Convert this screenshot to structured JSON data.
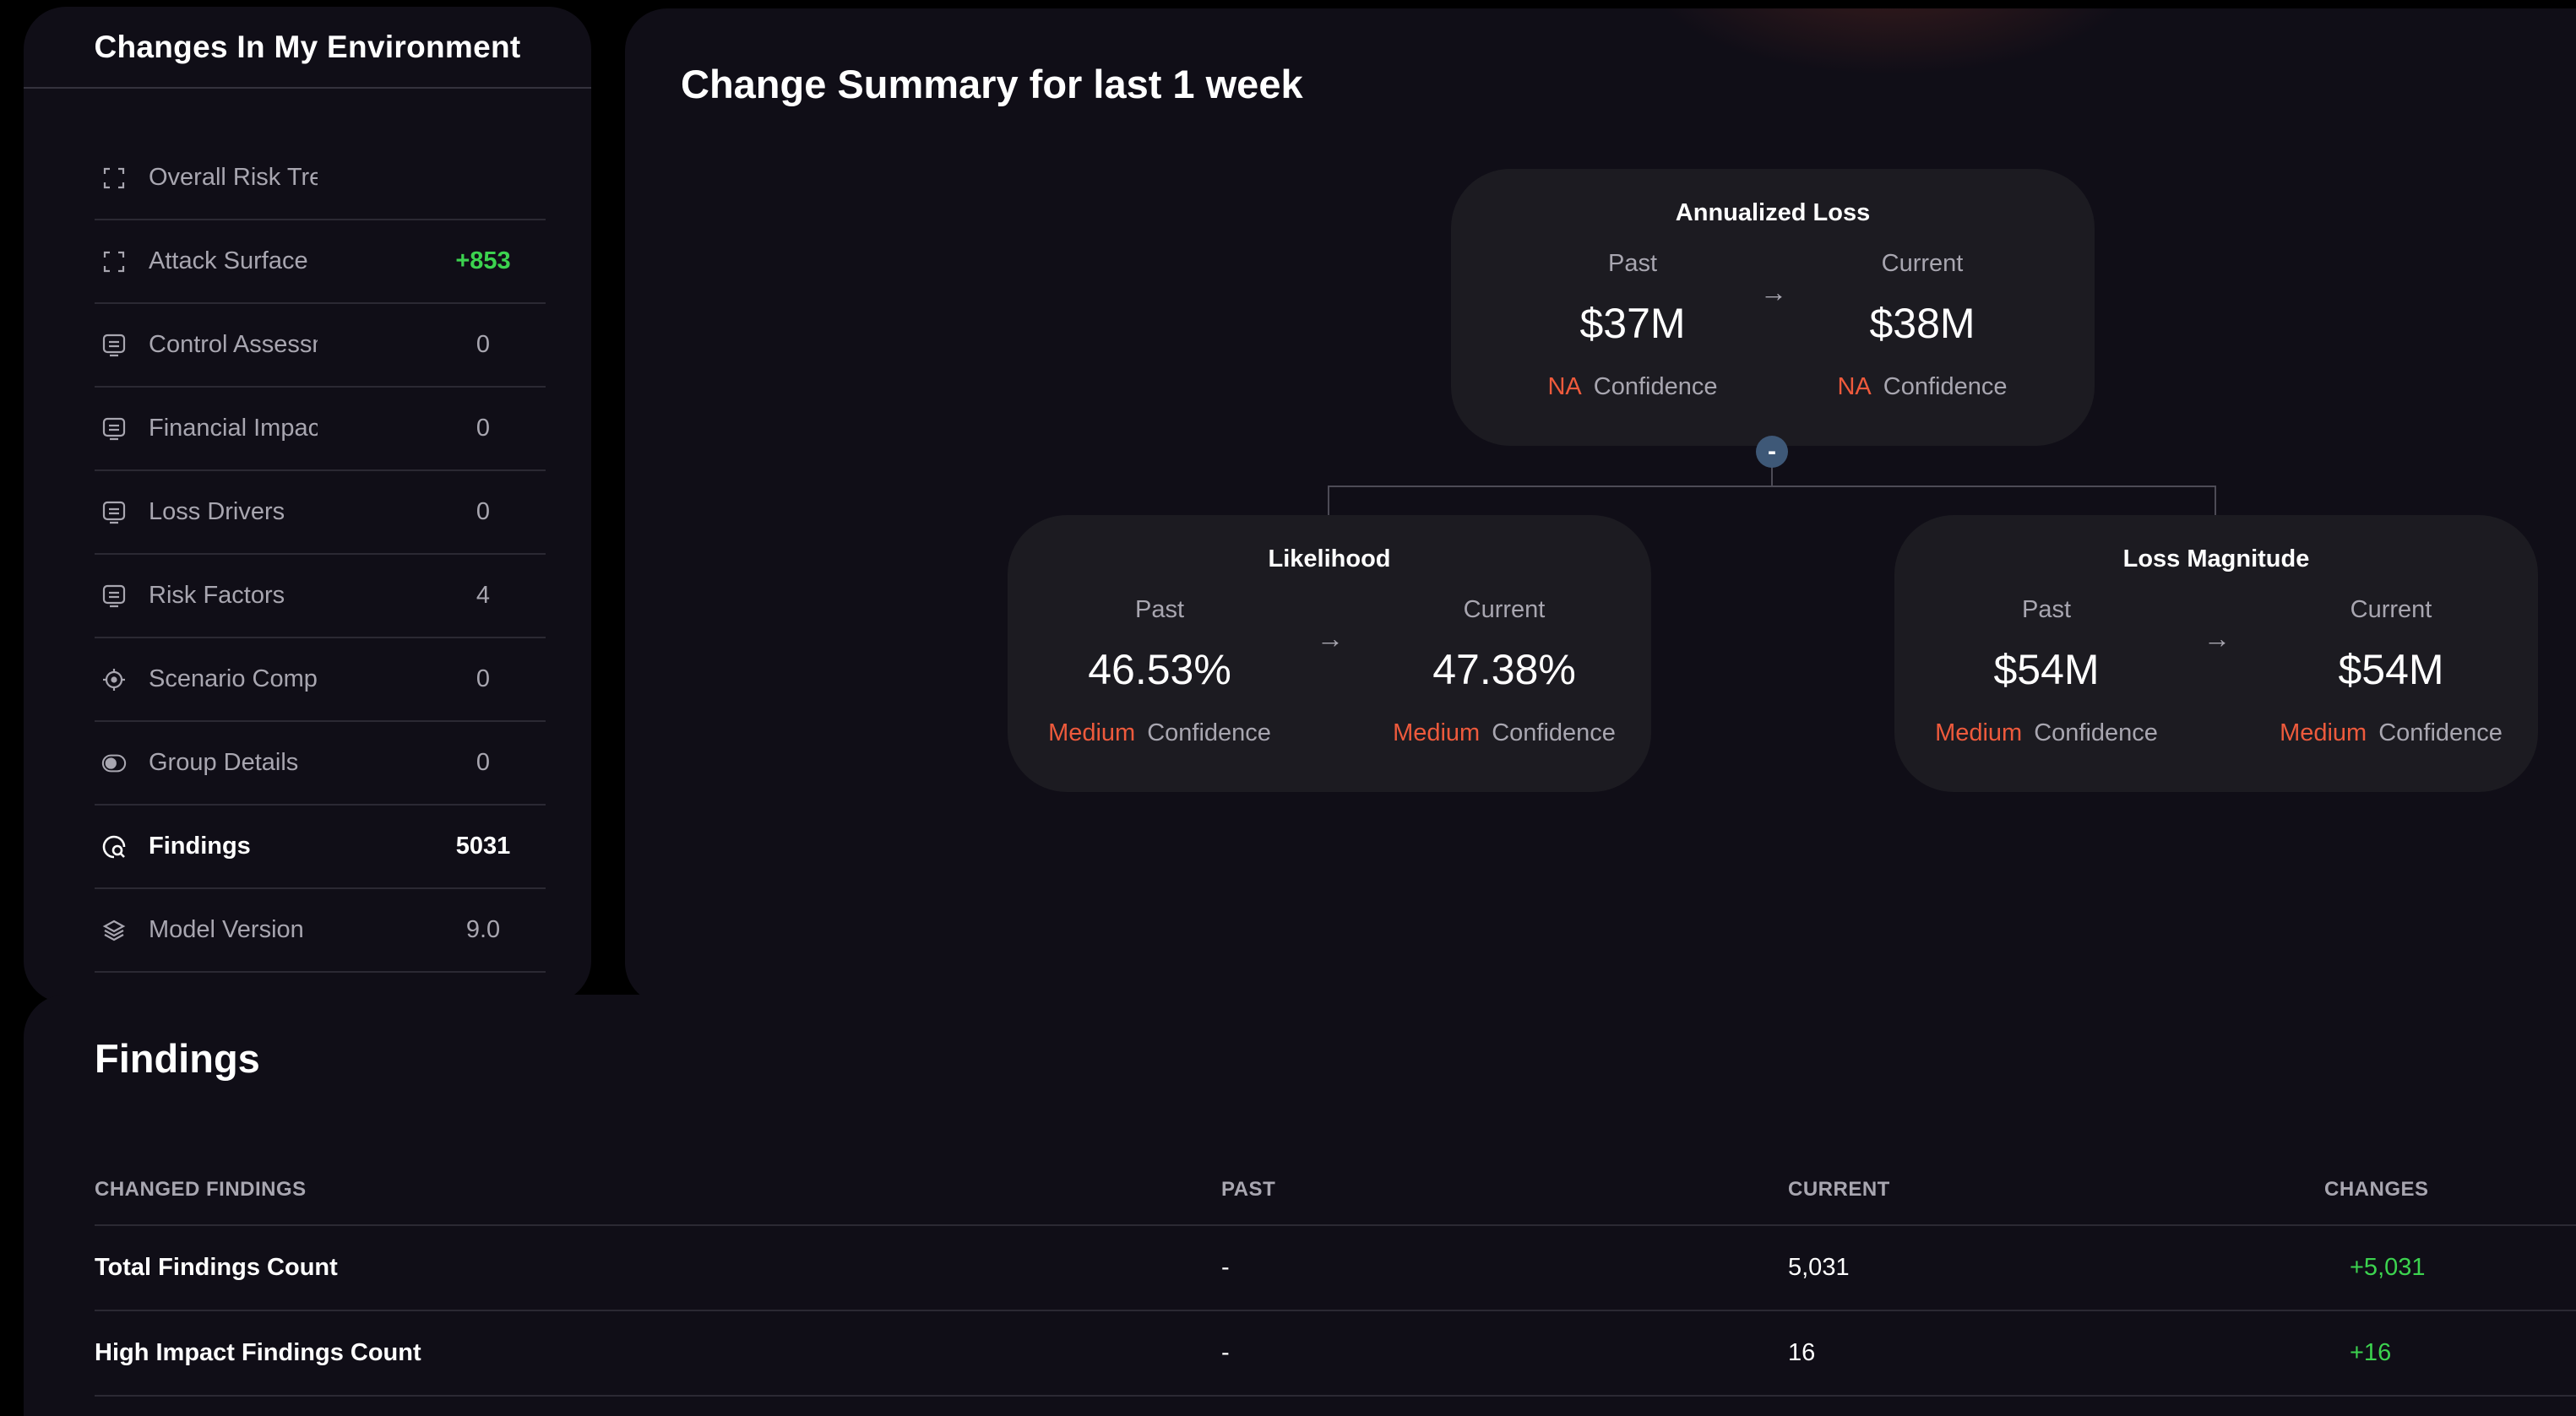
{
  "sidebar": {
    "title": "Changes In My Environment",
    "items": [
      {
        "label": "Overall Risk Trend",
        "value": "",
        "icon": "expand-icon"
      },
      {
        "label": "Attack Surface",
        "value": "+853",
        "icon": "expand-icon"
      },
      {
        "label": "Control Assessment",
        "value": "0",
        "icon": "monitor-icon"
      },
      {
        "label": "Financial Impact",
        "value": "0",
        "icon": "monitor-icon"
      },
      {
        "label": "Loss Drivers",
        "value": "0",
        "icon": "monitor-icon"
      },
      {
        "label": "Risk Factors",
        "value": "4",
        "icon": "monitor-icon"
      },
      {
        "label": "Scenario Composition",
        "value": "0",
        "icon": "target-icon"
      },
      {
        "label": "Group Details",
        "value": "0",
        "icon": "toggle-icon"
      },
      {
        "label": "Findings",
        "value": "5031",
        "icon": "search-icon"
      },
      {
        "label": "Model Version",
        "value": "9.0",
        "icon": "layers-icon"
      }
    ]
  },
  "summary": {
    "title": "Change Summary for last 1 week",
    "collapse_symbol": "-",
    "arrow": "→",
    "confidence_word": "Confidence",
    "annualized_loss": {
      "title": "Annualized Loss",
      "past_label": "Past",
      "current_label": "Current",
      "past_value": "$37M",
      "current_value": "$38M",
      "past_confidence": "NA",
      "current_confidence": "NA"
    },
    "likelihood": {
      "title": "Likelihood",
      "past_label": "Past",
      "current_label": "Current",
      "past_value": "46.53%",
      "current_value": "47.38%",
      "past_confidence": "Medium",
      "current_confidence": "Medium"
    },
    "loss_magnitude": {
      "title": "Loss Magnitude",
      "past_label": "Past",
      "current_label": "Current",
      "past_value": "$54M",
      "current_value": "$54M",
      "past_confidence": "Medium",
      "current_confidence": "Medium"
    }
  },
  "findings": {
    "title": "Findings",
    "columns": [
      "CHANGED FINDINGS",
      "PAST",
      "CURRENT",
      "CHANGES"
    ],
    "rows": [
      {
        "name": "Total Findings Count",
        "past": "-",
        "current": "5,031",
        "change": "+5,031"
      },
      {
        "name": "High Impact Findings Count",
        "past": "-",
        "current": "16",
        "change": "+16"
      }
    ]
  },
  "colors": {
    "background": "#000000",
    "panel": "#100e17",
    "card": "#1c1b21",
    "positive": "#3cd34f",
    "confidence_level": "#ee5a3c",
    "collapse_button": "#3e5877"
  }
}
